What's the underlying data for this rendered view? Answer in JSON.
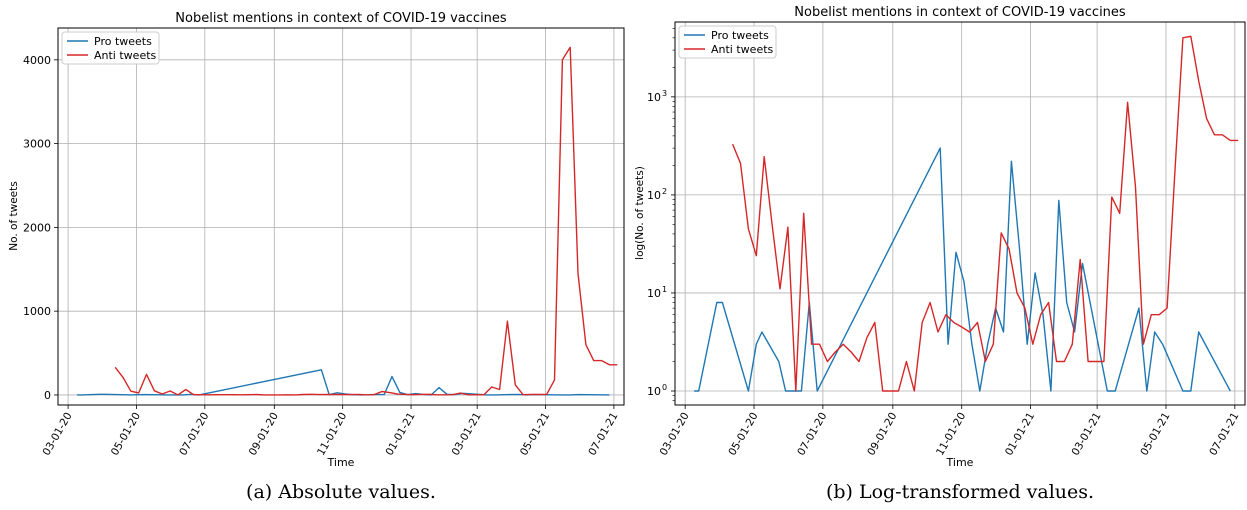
{
  "chart_data": [
    {
      "type": "line",
      "title": "Nobelist mentions in context of COVID-19 vaccines",
      "xlabel": "Time",
      "ylabel": "No. of tweets",
      "yscale": "linear",
      "ylim": [
        -120,
        4380
      ],
      "yticks": [
        0,
        1000,
        2000,
        3000,
        4000
      ],
      "ytick_labels": [
        "0",
        "1000",
        "2000",
        "3000",
        "4000"
      ],
      "xlim": [
        "2020-02-21",
        "2021-07-10"
      ],
      "xticks": [
        "2020-03-01",
        "2020-05-01",
        "2020-07-01",
        "2020-09-01",
        "2020-11-01",
        "2021-01-01",
        "2021-03-01",
        "2021-05-01",
        "2021-07-01"
      ],
      "xtick_labels": [
        "03-01-20",
        "05-01-20",
        "07-01-20",
        "09-01-20",
        "11-01-20",
        "01-01-21",
        "03-01-21",
        "05-01-21",
        "07-01-21"
      ],
      "grid": true,
      "legend_position": "top-left",
      "series": [
        {
          "name": "Pro tweets",
          "color": "#1f77b4",
          "x": [
            "2020-03-09",
            "2020-03-13",
            "2020-03-29",
            "2020-04-03",
            "2020-04-26",
            "2020-05-03",
            "2020-05-08",
            "2020-05-23",
            "2020-05-29",
            "2020-06-05",
            "2020-06-12",
            "2020-06-19",
            "2020-06-26",
            "2020-10-13",
            "2020-10-20",
            "2020-10-27",
            "2020-11-03",
            "2020-11-10",
            "2020-11-17",
            "2020-11-24",
            "2020-12-01",
            "2020-12-08",
            "2020-12-15",
            "2020-12-22",
            "2020-12-29",
            "2021-01-05",
            "2021-01-12",
            "2021-01-19",
            "2021-01-26",
            "2021-02-02",
            "2021-02-09",
            "2021-02-16",
            "2021-03-10",
            "2021-03-17",
            "2021-04-07",
            "2021-04-14",
            "2021-04-21",
            "2021-04-28",
            "2021-05-16",
            "2021-05-23",
            "2021-05-30",
            "2021-06-27"
          ],
          "y": [
            1,
            1,
            8,
            8,
            1,
            3,
            4,
            2,
            1,
            1,
            1,
            8,
            1,
            300,
            3,
            26,
            13,
            3,
            1,
            3,
            7,
            4,
            220,
            30,
            3,
            16,
            6,
            1,
            88,
            8,
            4,
            20,
            1,
            1,
            7,
            1,
            4,
            3,
            1,
            1,
            4,
            1
          ]
        },
        {
          "name": "Anti tweets",
          "color": "#d62728",
          "x": [
            "2020-04-12",
            "2020-04-19",
            "2020-04-26",
            "2020-05-03",
            "2020-05-10",
            "2020-05-17",
            "2020-05-24",
            "2020-05-31",
            "2020-06-07",
            "2020-06-14",
            "2020-06-21",
            "2020-06-28",
            "2020-07-05",
            "2020-07-12",
            "2020-07-19",
            "2020-07-26",
            "2020-08-02",
            "2020-08-09",
            "2020-08-16",
            "2020-08-23",
            "2020-08-30",
            "2020-09-06",
            "2020-09-13",
            "2020-09-20",
            "2020-09-27",
            "2020-10-04",
            "2020-10-11",
            "2020-10-18",
            "2020-10-25",
            "2020-11-01",
            "2020-11-08",
            "2020-11-15",
            "2020-11-22",
            "2020-11-29",
            "2020-12-06",
            "2020-12-13",
            "2020-12-20",
            "2020-12-27",
            "2021-01-03",
            "2021-01-10",
            "2021-01-17",
            "2021-01-24",
            "2021-01-31",
            "2021-02-07",
            "2021-02-14",
            "2021-02-21",
            "2021-02-28",
            "2021-03-07",
            "2021-03-14",
            "2021-03-21",
            "2021-03-28",
            "2021-04-04",
            "2021-04-11",
            "2021-04-18",
            "2021-04-25",
            "2021-05-02",
            "2021-05-09",
            "2021-05-16",
            "2021-05-23",
            "2021-05-30",
            "2021-06-06",
            "2021-06-13",
            "2021-06-20",
            "2021-06-27",
            "2021-07-04"
          ],
          "y": [
            330,
            210,
            45,
            24,
            245,
            50,
            11,
            47,
            1,
            65,
            3,
            3,
            2,
            2.5,
            3,
            2.5,
            2,
            3.5,
            5,
            1,
            1,
            1,
            2,
            1,
            5,
            8,
            4,
            6,
            5,
            4.5,
            4,
            5,
            2,
            3,
            41,
            28,
            10,
            7,
            3,
            6,
            8,
            2,
            2,
            3,
            22,
            2,
            2,
            2,
            95,
            65,
            880,
            120,
            3,
            6,
            6,
            7,
            180,
            4000,
            4150,
            1450,
            600,
            410,
            410,
            360,
            360
          ]
        }
      ]
    },
    {
      "type": "line",
      "title": "Nobelist mentions in context of COVID-19 vaccines",
      "xlabel": "Time",
      "ylabel": "log(No. of tweets)",
      "yscale": "log",
      "ylim": [
        0.72,
        5800
      ],
      "yticks": [
        1,
        10,
        100,
        1000
      ],
      "ytick_labels": [
        "10",
        "10",
        "10",
        "10"
      ],
      "ytick_exponents": [
        "0",
        "1",
        "2",
        "3"
      ],
      "xlim": [
        "2020-02-21",
        "2021-07-10"
      ],
      "xticks": [
        "2020-03-01",
        "2020-05-01",
        "2020-07-01",
        "2020-09-01",
        "2020-11-01",
        "2021-01-01",
        "2021-03-01",
        "2021-05-01",
        "2021-07-01"
      ],
      "xtick_labels": [
        "03-01-20",
        "05-01-20",
        "07-01-20",
        "09-01-20",
        "11-01-20",
        "01-01-21",
        "03-01-21",
        "05-01-21",
        "07-01-21"
      ],
      "grid": true,
      "legend_position": "top-left",
      "series_ref": "same as first chart"
    }
  ],
  "captions": [
    "(a) Absolute values.",
    "(b) Log-transformed values."
  ]
}
